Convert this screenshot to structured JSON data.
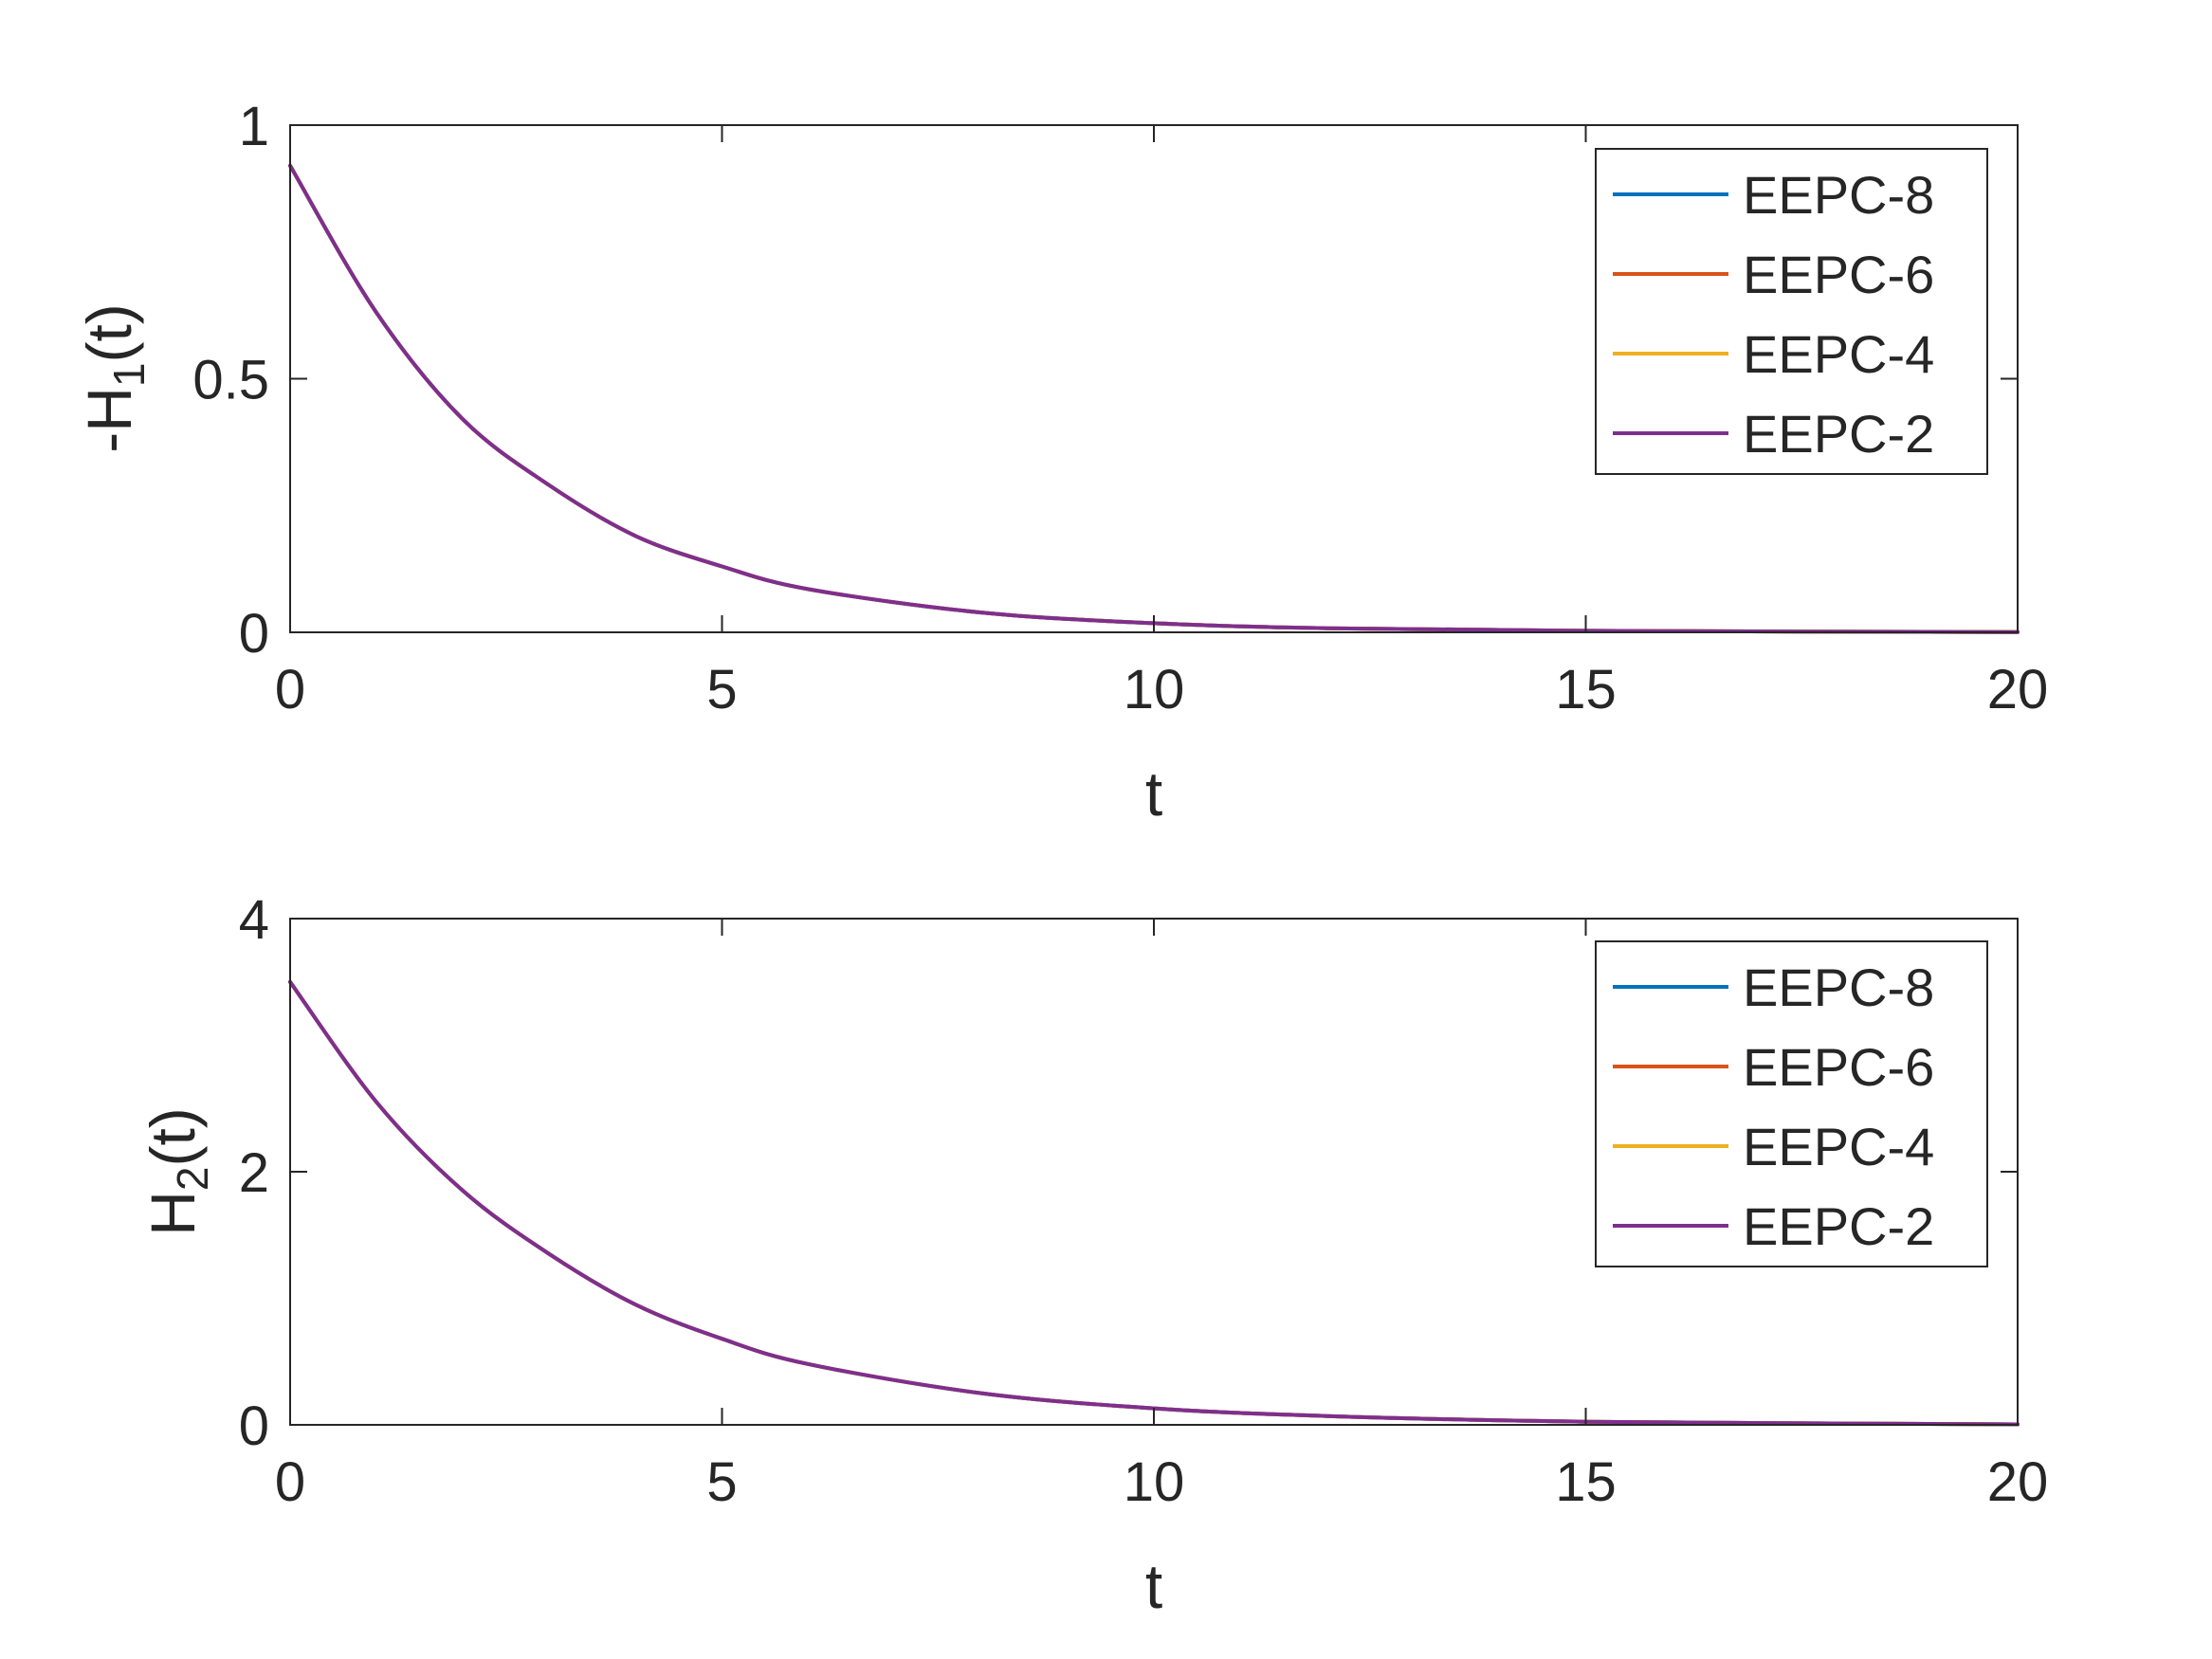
{
  "chart_data": [
    {
      "type": "line",
      "xlabel": "t",
      "ylabel": "-H_1(t)",
      "xlim": [
        0,
        20
      ],
      "ylim": [
        0,
        1
      ],
      "xticks": [
        "0",
        "5",
        "10",
        "15",
        "20"
      ],
      "yticks": [
        "0",
        "0.5",
        "1"
      ],
      "ytick_values": [
        0,
        0.5,
        1
      ],
      "grid": false,
      "legend_position": "top-right",
      "series": [
        {
          "name": "EEPC-8",
          "color": "#0072BD",
          "x": [
            0,
            1,
            2,
            3,
            4,
            5,
            6,
            8,
            10,
            12,
            15,
            20
          ],
          "y": [
            0.92,
            0.63,
            0.42,
            0.29,
            0.19,
            0.13,
            0.085,
            0.039,
            0.018,
            0.008,
            0.003,
            0.0005
          ]
        },
        {
          "name": "EEPC-6",
          "color": "#D95319",
          "x": [
            0,
            1,
            2,
            3,
            4,
            5,
            6,
            8,
            10,
            12,
            15,
            20
          ],
          "y": [
            0.92,
            0.63,
            0.42,
            0.29,
            0.19,
            0.13,
            0.085,
            0.039,
            0.018,
            0.008,
            0.003,
            0.0005
          ]
        },
        {
          "name": "EEPC-4",
          "color": "#EDB120",
          "x": [
            0,
            1,
            2,
            3,
            4,
            5,
            6,
            8,
            10,
            12,
            15,
            20
          ],
          "y": [
            0.92,
            0.63,
            0.42,
            0.29,
            0.19,
            0.13,
            0.085,
            0.039,
            0.018,
            0.008,
            0.003,
            0.0005
          ]
        },
        {
          "name": "EEPC-2",
          "color": "#7E2F8E",
          "x": [
            0,
            1,
            2,
            3,
            4,
            5,
            6,
            8,
            10,
            12,
            15,
            20
          ],
          "y": [
            0.92,
            0.63,
            0.42,
            0.29,
            0.19,
            0.13,
            0.085,
            0.039,
            0.018,
            0.008,
            0.003,
            0.0005
          ]
        }
      ]
    },
    {
      "type": "line",
      "xlabel": "t",
      "ylabel": "H_2(t)",
      "xlim": [
        0,
        20
      ],
      "ylim": [
        0,
        4
      ],
      "xticks": [
        "0",
        "5",
        "10",
        "15",
        "20"
      ],
      "yticks": [
        "0",
        "2",
        "4"
      ],
      "ytick_values": [
        0,
        2,
        4
      ],
      "grid": false,
      "legend_position": "top-right",
      "series": [
        {
          "name": "EEPC-8",
          "color": "#0072BD",
          "x": [
            0,
            1,
            2,
            3,
            4,
            5,
            6,
            8,
            10,
            12,
            15,
            20
          ],
          "y": [
            3.5,
            2.55,
            1.85,
            1.35,
            0.95,
            0.68,
            0.48,
            0.25,
            0.13,
            0.07,
            0.025,
            0.004
          ]
        },
        {
          "name": "EEPC-6",
          "color": "#D95319",
          "x": [
            0,
            1,
            2,
            3,
            4,
            5,
            6,
            8,
            10,
            12,
            15,
            20
          ],
          "y": [
            3.5,
            2.55,
            1.85,
            1.35,
            0.95,
            0.68,
            0.48,
            0.25,
            0.13,
            0.07,
            0.025,
            0.004
          ]
        },
        {
          "name": "EEPC-4",
          "color": "#EDB120",
          "x": [
            0,
            1,
            2,
            3,
            4,
            5,
            6,
            8,
            10,
            12,
            15,
            20
          ],
          "y": [
            3.5,
            2.55,
            1.85,
            1.35,
            0.95,
            0.68,
            0.48,
            0.25,
            0.13,
            0.07,
            0.025,
            0.004
          ]
        },
        {
          "name": "EEPC-2",
          "color": "#7E2F8E",
          "x": [
            0,
            1,
            2,
            3,
            4,
            5,
            6,
            8,
            10,
            12,
            15,
            20
          ],
          "y": [
            3.5,
            2.55,
            1.85,
            1.35,
            0.95,
            0.68,
            0.48,
            0.25,
            0.13,
            0.07,
            0.025,
            0.004
          ]
        }
      ]
    }
  ]
}
